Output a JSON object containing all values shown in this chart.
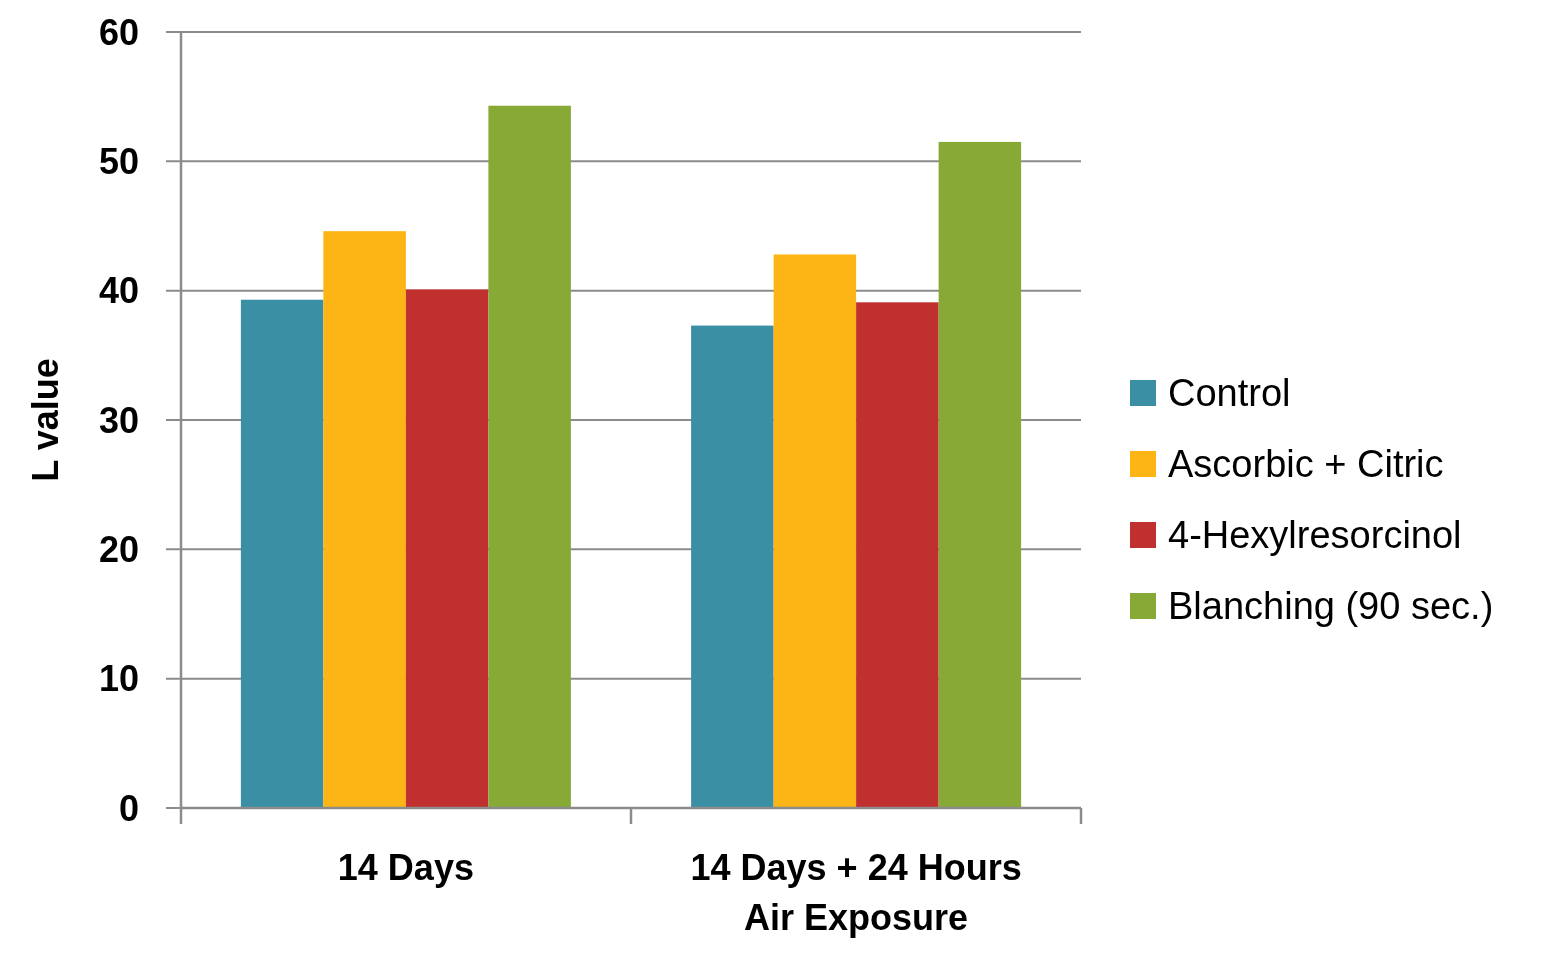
{
  "chart_data": {
    "type": "bar",
    "ylabel": "L value",
    "categories": [
      "14 Days",
      "14 Days + 24 Hours\nAir Exposure"
    ],
    "series": [
      {
        "name": "Control",
        "color": "#3a8fa5",
        "values": [
          39.3,
          37.3
        ]
      },
      {
        "name": "Ascorbic + Citric",
        "color": "#fdb515",
        "values": [
          44.6,
          42.8
        ]
      },
      {
        "name": "4-Hexylresorcinol",
        "color": "#c0302f",
        "values": [
          40.1,
          39.1
        ]
      },
      {
        "name": "Blanching (90 sec.)",
        "color": "#86aa35",
        "values": [
          54.3,
          51.5
        ]
      }
    ],
    "ylim": [
      0,
      60
    ],
    "yticks": [
      0,
      10,
      20,
      30,
      40,
      50,
      60
    ],
    "grid": "y",
    "legend": "right"
  }
}
